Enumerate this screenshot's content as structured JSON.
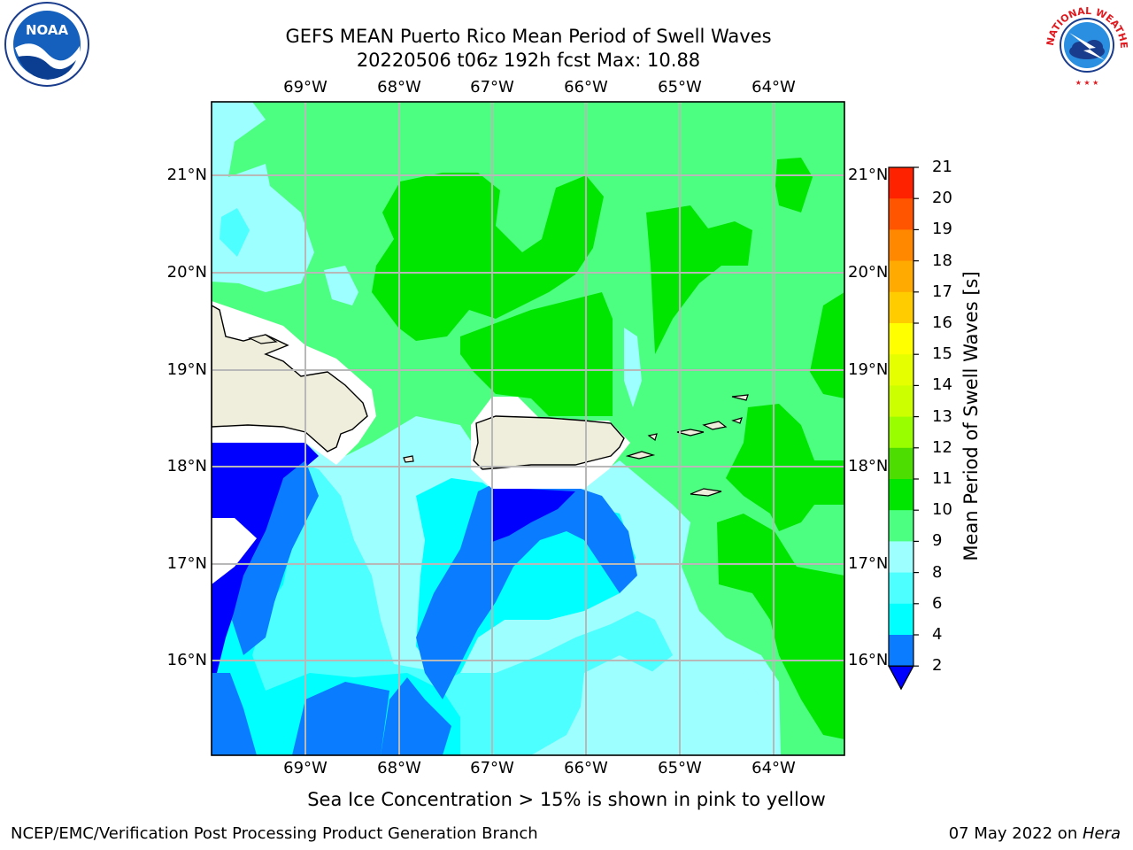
{
  "header": {
    "title_line1": "GEFS MEAN Puerto Rico Mean Period of Swell Waves",
    "title_line2": "20220506 t06z 192h fcst   Max: 10.88"
  },
  "map": {
    "lon_labels": [
      "69°W",
      "68°W",
      "67°W",
      "66°W",
      "65°W",
      "64°W"
    ],
    "lat_labels": [
      "21°N",
      "20°N",
      "19°N",
      "18°N",
      "17°N",
      "16°N"
    ]
  },
  "colorbar": {
    "title": "Mean Period of Swell Waves [s]",
    "ticks": [
      "2",
      "4",
      "6",
      "8",
      "9",
      "10",
      "11",
      "12",
      "13",
      "14",
      "15",
      "16",
      "17",
      "18",
      "19",
      "20",
      "21"
    ],
    "colors": [
      "#0000ff",
      "#0a7cff",
      "#00ffff",
      "#4dffff",
      "#9dffff",
      "#4dff80",
      "#00e600",
      "#4ddd00",
      "#99ff00",
      "#ccff00",
      "#e6ff00",
      "#ffff00",
      "#ffcc00",
      "#ffaa00",
      "#ff8800",
      "#ff5500",
      "#ff2200",
      "#ff0000"
    ]
  },
  "note": "Sea Ice Concentration > 15% is shown in pink to yellow",
  "footer": {
    "left": "NCEP/EMC/Verification Post Processing Product Generation Branch",
    "right_date": "07 May 2022 on ",
    "right_host": "Hera"
  },
  "logos": {
    "noaa_text": "NOAA",
    "nws_text": "NATIONAL WEATHER SERVICE"
  }
}
